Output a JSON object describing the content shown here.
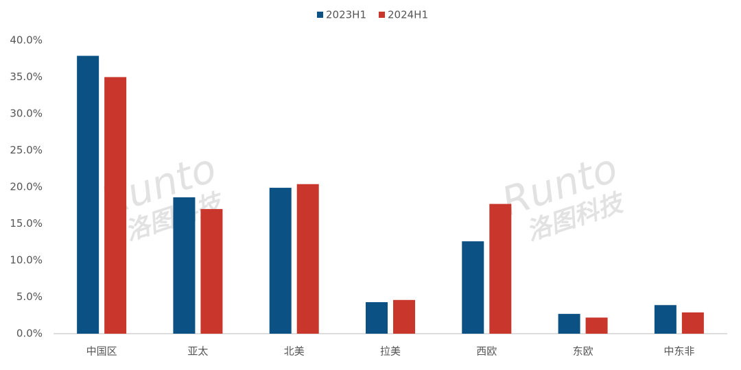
{
  "chart_data": {
    "type": "bar",
    "categories": [
      "中国区",
      "亚太",
      "北美",
      "拉美",
      "西欧",
      "东欧",
      "中东非"
    ],
    "series": [
      {
        "name": "2023H1",
        "color": "#0b5184",
        "values": [
          37.9,
          18.6,
          19.9,
          4.3,
          12.6,
          2.7,
          3.9
        ]
      },
      {
        "name": "2024H1",
        "color": "#c9372c",
        "values": [
          35.0,
          17.0,
          20.4,
          4.6,
          17.7,
          2.2,
          2.9
        ]
      }
    ],
    "ylim": [
      0,
      40
    ],
    "yticks": [
      {
        "value": 0,
        "label": "0.0%"
      },
      {
        "value": 5,
        "label": "5.0%"
      },
      {
        "value": 10,
        "label": "10.0%"
      },
      {
        "value": 15,
        "label": "15.0%"
      },
      {
        "value": 20,
        "label": "20.0%"
      },
      {
        "value": 25,
        "label": "25.0%"
      },
      {
        "value": 30,
        "label": "30.0%"
      },
      {
        "value": 35,
        "label": "35.0%"
      },
      {
        "value": 40,
        "label": "40.0%"
      }
    ],
    "grid": false,
    "legend": "top",
    "watermark": [
      "Runto",
      "洛图科技"
    ]
  }
}
